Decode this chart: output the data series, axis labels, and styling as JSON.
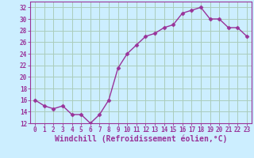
{
  "x": [
    0,
    1,
    2,
    3,
    4,
    5,
    6,
    7,
    8,
    9,
    10,
    11,
    12,
    13,
    14,
    15,
    16,
    17,
    18,
    19,
    20,
    21,
    22,
    23
  ],
  "y": [
    16,
    15,
    14.5,
    15,
    13.5,
    13.5,
    12,
    13.5,
    16,
    21.5,
    24,
    25.5,
    27,
    27.5,
    28.5,
    29,
    31,
    31.5,
    32,
    30,
    30,
    28.5,
    28.5,
    27
  ],
  "line_color": "#993399",
  "marker": "D",
  "marker_size": 2.5,
  "background_color": "#cceeff",
  "grid_color": "#aaccbb",
  "xlabel": "Windchill (Refroidissement éolien,°C)",
  "xlabel_color": "#993399",
  "tick_color": "#993399",
  "spine_color": "#993399",
  "ylim": [
    12,
    33
  ],
  "xlim": [
    -0.5,
    23.5
  ],
  "yticks": [
    12,
    14,
    16,
    18,
    20,
    22,
    24,
    26,
    28,
    30,
    32
  ],
  "xticks": [
    0,
    1,
    2,
    3,
    4,
    5,
    6,
    7,
    8,
    9,
    10,
    11,
    12,
    13,
    14,
    15,
    16,
    17,
    18,
    19,
    20,
    21,
    22,
    23
  ],
  "tick_fontsize": 5.5,
  "xlabel_fontsize": 7.0,
  "linewidth": 1.0
}
